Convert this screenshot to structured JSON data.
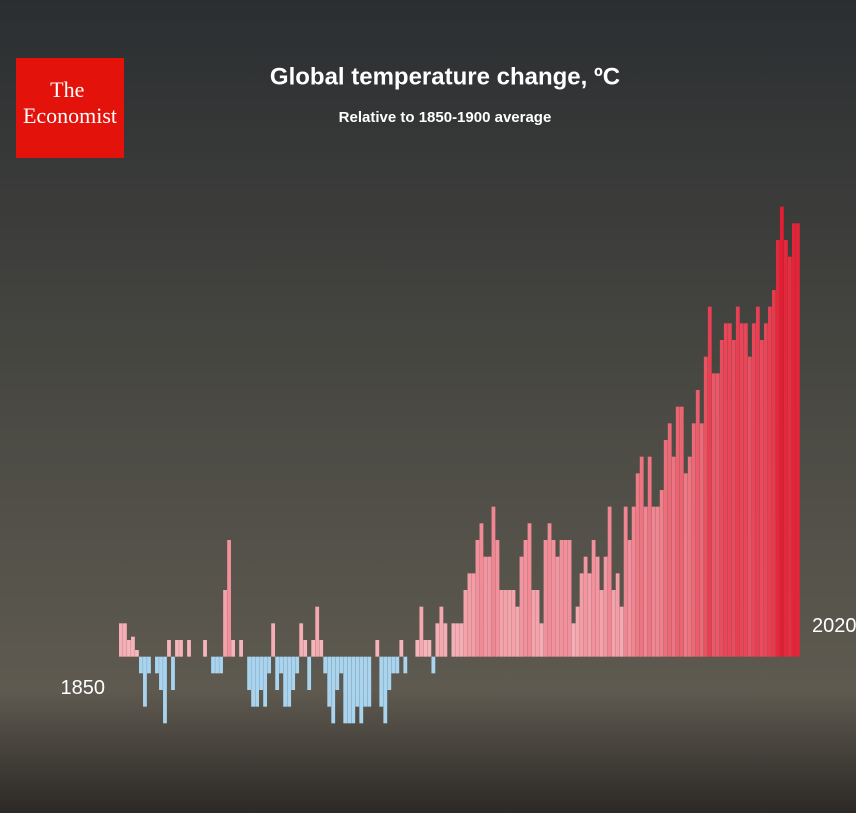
{
  "logo": "The Economist",
  "chart_data": {
    "type": "bar",
    "title": "Global temperature change, ºC",
    "subtitle": "Relative to 1850-1900 average",
    "x": [
      1850,
      1851,
      1852,
      1853,
      1854,
      1855,
      1856,
      1857,
      1858,
      1859,
      1860,
      1861,
      1862,
      1863,
      1864,
      1865,
      1866,
      1867,
      1868,
      1869,
      1870,
      1871,
      1872,
      1873,
      1874,
      1875,
      1876,
      1877,
      1878,
      1879,
      1880,
      1881,
      1882,
      1883,
      1884,
      1885,
      1886,
      1887,
      1888,
      1889,
      1890,
      1891,
      1892,
      1893,
      1894,
      1895,
      1896,
      1897,
      1898,
      1899,
      1900,
      1901,
      1902,
      1903,
      1904,
      1905,
      1906,
      1907,
      1908,
      1909,
      1910,
      1911,
      1912,
      1913,
      1914,
      1915,
      1916,
      1917,
      1918,
      1919,
      1920,
      1921,
      1922,
      1923,
      1924,
      1925,
      1926,
      1927,
      1928,
      1929,
      1930,
      1931,
      1932,
      1933,
      1934,
      1935,
      1936,
      1937,
      1938,
      1939,
      1940,
      1941,
      1942,
      1943,
      1944,
      1945,
      1946,
      1947,
      1948,
      1949,
      1950,
      1951,
      1952,
      1953,
      1954,
      1955,
      1956,
      1957,
      1958,
      1959,
      1960,
      1961,
      1962,
      1963,
      1964,
      1965,
      1966,
      1967,
      1968,
      1969,
      1970,
      1971,
      1972,
      1973,
      1974,
      1975,
      1976,
      1977,
      1978,
      1979,
      1980,
      1981,
      1982,
      1983,
      1984,
      1985,
      1986,
      1987,
      1988,
      1989,
      1990,
      1991,
      1992,
      1993,
      1994,
      1995,
      1996,
      1997,
      1998,
      1999,
      2000,
      2001,
      2002,
      2003,
      2004,
      2005,
      2006,
      2007,
      2008,
      2009,
      2010,
      2011,
      2012,
      2013,
      2014,
      2015,
      2016,
      2017,
      2018,
      2019,
      2020
    ],
    "values": [
      0.0,
      0.1,
      0.1,
      0.05,
      0.06,
      0.02,
      -0.05,
      -0.15,
      -0.05,
      0.0,
      -0.05,
      -0.1,
      -0.2,
      0.05,
      -0.1,
      0.05,
      0.05,
      0.0,
      0.05,
      0.0,
      0.0,
      0.0,
      0.05,
      0.0,
      -0.05,
      -0.05,
      -0.05,
      0.2,
      0.35,
      0.05,
      0.0,
      0.05,
      0.0,
      -0.1,
      -0.15,
      -0.15,
      -0.1,
      -0.15,
      -0.05,
      0.1,
      -0.1,
      -0.05,
      -0.15,
      -0.15,
      -0.1,
      -0.05,
      0.1,
      0.05,
      -0.1,
      0.05,
      0.15,
      0.05,
      -0.05,
      -0.15,
      -0.2,
      -0.1,
      -0.05,
      -0.2,
      -0.2,
      -0.2,
      -0.15,
      -0.2,
      -0.15,
      -0.15,
      0.0,
      0.05,
      -0.15,
      -0.2,
      -0.1,
      -0.05,
      -0.05,
      0.05,
      -0.05,
      0.0,
      0.0,
      0.05,
      0.15,
      0.05,
      0.05,
      -0.05,
      0.1,
      0.15,
      0.1,
      0.0,
      0.1,
      0.1,
      0.1,
      0.2,
      0.25,
      0.25,
      0.35,
      0.4,
      0.3,
      0.3,
      0.45,
      0.35,
      0.2,
      0.2,
      0.2,
      0.2,
      0.15,
      0.3,
      0.35,
      0.4,
      0.2,
      0.2,
      0.1,
      0.35,
      0.4,
      0.35,
      0.3,
      0.35,
      0.35,
      0.35,
      0.1,
      0.15,
      0.25,
      0.3,
      0.25,
      0.35,
      0.3,
      0.2,
      0.3,
      0.45,
      0.2,
      0.25,
      0.15,
      0.45,
      0.35,
      0.45,
      0.55,
      0.6,
      0.45,
      0.6,
      0.45,
      0.45,
      0.5,
      0.65,
      0.7,
      0.6,
      0.75,
      0.75,
      0.55,
      0.6,
      0.7,
      0.8,
      0.7,
      0.9,
      1.05,
      0.85,
      0.85,
      0.95,
      1.0,
      1.0,
      0.95,
      1.05,
      1.0,
      1.0,
      0.9,
      1.0,
      1.05,
      0.95,
      1.0,
      1.05,
      1.1,
      1.25,
      1.35,
      1.25,
      1.2,
      1.3,
      1.3
    ],
    "positive_color": "#e3182d",
    "negative_color": "#a8d4f0",
    "xlim": [
      1849.5,
      2020.5
    ],
    "xticks": [
      1850,
      2020
    ],
    "ylim": [
      -0.4,
      1.4
    ],
    "grid": false
  }
}
